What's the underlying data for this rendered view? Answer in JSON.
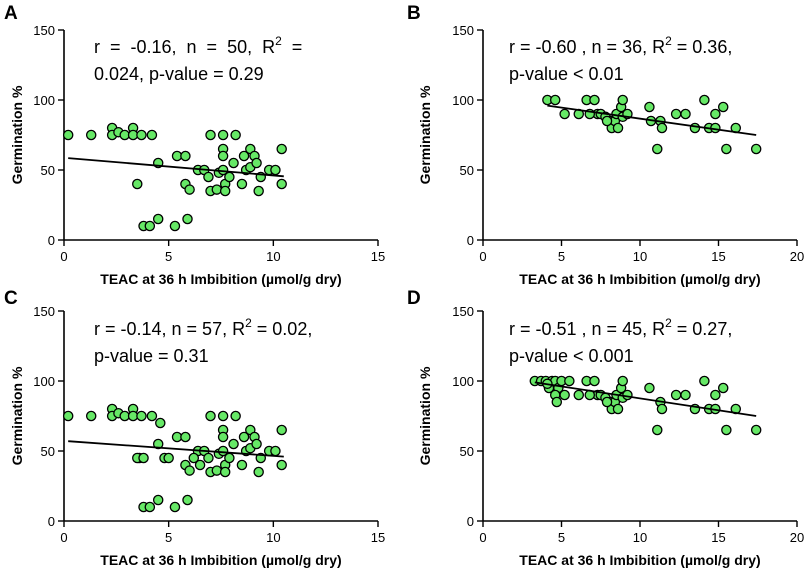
{
  "colors": {
    "point_fill": "#66e866",
    "point_stroke": "#000000",
    "axis": "#000000",
    "line": "#000000"
  },
  "chart_data": [
    {
      "id": "A",
      "type": "scatter",
      "xlabel": "TEAC at 36 h Imbibition (µmol/g dry)",
      "ylabel": "Germination %",
      "xlim": [
        0,
        15
      ],
      "ylim": [
        0,
        150
      ],
      "xticks": [
        0,
        5,
        10,
        15
      ],
      "yticks": [
        0,
        50,
        100,
        150
      ],
      "stats_line1": "r  =  -0.16,  n  =  50,  R",
      "stats_sup": "2",
      "stats_line1_end": "  =",
      "stats_line2": "0.024, p-value = 0.29",
      "regression": {
        "x": [
          0.2,
          10.5
        ],
        "y": [
          58.5,
          45.5
        ]
      },
      "points": [
        [
          0.2,
          75
        ],
        [
          1.3,
          75
        ],
        [
          2.3,
          80
        ],
        [
          2.3,
          75
        ],
        [
          2.6,
          77
        ],
        [
          2.9,
          75
        ],
        [
          3.3,
          80
        ],
        [
          3.3,
          75
        ],
        [
          3.7,
          75
        ],
        [
          3.5,
          40
        ],
        [
          3.8,
          10
        ],
        [
          4.1,
          10
        ],
        [
          4.2,
          75
        ],
        [
          4.5,
          15
        ],
        [
          4.5,
          55
        ],
        [
          5.3,
          10
        ],
        [
          5.4,
          60
        ],
        [
          5.8,
          60
        ],
        [
          5.9,
          15
        ],
        [
          5.8,
          40
        ],
        [
          6.0,
          36
        ],
        [
          6.4,
          50
        ],
        [
          6.7,
          50
        ],
        [
          6.9,
          45
        ],
        [
          7.0,
          35
        ],
        [
          7.3,
          36
        ],
        [
          7.4,
          48
        ],
        [
          7.0,
          75
        ],
        [
          7.6,
          75
        ],
        [
          7.6,
          65
        ],
        [
          7.6,
          60
        ],
        [
          7.6,
          50
        ],
        [
          7.7,
          40
        ],
        [
          7.7,
          35
        ],
        [
          7.9,
          45
        ],
        [
          8.1,
          55
        ],
        [
          8.2,
          75
        ],
        [
          8.5,
          40
        ],
        [
          8.6,
          60
        ],
        [
          8.7,
          50
        ],
        [
          8.9,
          52
        ],
        [
          8.9,
          65
        ],
        [
          9.1,
          60
        ],
        [
          9.2,
          55
        ],
        [
          9.3,
          35
        ],
        [
          9.4,
          45
        ],
        [
          9.8,
          50
        ],
        [
          10.1,
          50
        ],
        [
          10.4,
          65
        ],
        [
          10.4,
          40
        ]
      ]
    },
    {
      "id": "B",
      "type": "scatter",
      "xlabel": "TEAC at 36 h Imbibition (µmol/g dry)",
      "ylabel": "Germination %",
      "xlim": [
        0,
        20
      ],
      "ylim": [
        0,
        150
      ],
      "xticks": [
        0,
        5,
        10,
        15,
        20
      ],
      "yticks": [
        0,
        50,
        100,
        150
      ],
      "stats_line1": "r = -0.60 , n = 36, R",
      "stats_sup": "2",
      "stats_line1_end": " = 0.36,",
      "stats_line2": "p-value < 0.01",
      "regression": {
        "x": [
          4.1,
          17.4
        ],
        "y": [
          96,
          75
        ]
      },
      "points": [
        [
          4.1,
          100
        ],
        [
          4.6,
          100
        ],
        [
          5.2,
          90
        ],
        [
          6.1,
          90
        ],
        [
          6.6,
          100
        ],
        [
          7.1,
          100
        ],
        [
          7.3,
          90
        ],
        [
          7.5,
          90
        ],
        [
          7.8,
          88
        ],
        [
          8.1,
          85
        ],
        [
          8.2,
          80
        ],
        [
          8.4,
          85
        ],
        [
          8.5,
          90
        ],
        [
          8.6,
          80
        ],
        [
          8.8,
          95
        ],
        [
          8.9,
          100
        ],
        [
          8.9,
          88
        ],
        [
          10.6,
          95
        ],
        [
          11.1,
          65
        ],
        [
          11.3,
          85
        ],
        [
          11.4,
          80
        ],
        [
          12.3,
          90
        ],
        [
          12.9,
          90
        ],
        [
          13.5,
          80
        ],
        [
          14.1,
          100
        ],
        [
          14.4,
          80
        ],
        [
          14.8,
          80
        ],
        [
          14.8,
          90
        ],
        [
          15.3,
          95
        ],
        [
          15.5,
          65
        ],
        [
          16.1,
          80
        ],
        [
          17.4,
          65
        ],
        [
          10.7,
          85
        ],
        [
          7.9,
          85
        ],
        [
          6.8,
          90
        ],
        [
          9.2,
          90
        ]
      ]
    },
    {
      "id": "C",
      "type": "scatter",
      "xlabel": "TEAC at 36 h Imbibition (µmol/g dry)",
      "ylabel": "Germination %",
      "xlim": [
        0,
        15
      ],
      "ylim": [
        0,
        150
      ],
      "xticks": [
        0,
        5,
        10,
        15
      ],
      "yticks": [
        0,
        50,
        100,
        150
      ],
      "stats_line1": "r = -0.14, n = 57, R",
      "stats_sup": "2",
      "stats_line1_end": " = 0.02,",
      "stats_line2": "p-value = 0.31",
      "regression": {
        "x": [
          0.2,
          10.5
        ],
        "y": [
          57,
          46
        ]
      },
      "points": [
        [
          0.2,
          75
        ],
        [
          1.3,
          75
        ],
        [
          2.3,
          80
        ],
        [
          2.3,
          75
        ],
        [
          2.6,
          77
        ],
        [
          2.9,
          75
        ],
        [
          3.3,
          80
        ],
        [
          3.3,
          75
        ],
        [
          3.7,
          75
        ],
        [
          3.6,
          45
        ],
        [
          3.8,
          10
        ],
        [
          4.1,
          10
        ],
        [
          4.2,
          75
        ],
        [
          4.5,
          15
        ],
        [
          4.5,
          55
        ],
        [
          5.3,
          10
        ],
        [
          5.4,
          60
        ],
        [
          5.8,
          60
        ],
        [
          5.9,
          15
        ],
        [
          5.8,
          40
        ],
        [
          6.0,
          36
        ],
        [
          6.4,
          50
        ],
        [
          6.7,
          50
        ],
        [
          6.9,
          45
        ],
        [
          7.0,
          35
        ],
        [
          7.3,
          36
        ],
        [
          7.4,
          48
        ],
        [
          7.0,
          75
        ],
        [
          7.6,
          75
        ],
        [
          7.6,
          65
        ],
        [
          7.6,
          60
        ],
        [
          7.6,
          50
        ],
        [
          7.7,
          40
        ],
        [
          7.7,
          35
        ],
        [
          7.9,
          45
        ],
        [
          8.1,
          55
        ],
        [
          8.2,
          75
        ],
        [
          8.5,
          40
        ],
        [
          8.6,
          60
        ],
        [
          8.7,
          50
        ],
        [
          8.9,
          52
        ],
        [
          8.9,
          65
        ],
        [
          9.1,
          60
        ],
        [
          9.2,
          55
        ],
        [
          9.3,
          35
        ],
        [
          9.4,
          45
        ],
        [
          9.8,
          50
        ],
        [
          10.1,
          50
        ],
        [
          10.4,
          65
        ],
        [
          10.4,
          40
        ],
        [
          3.5,
          45
        ],
        [
          4.8,
          45
        ],
        [
          5.0,
          45
        ],
        [
          6.2,
          45
        ],
        [
          6.5,
          40
        ],
        [
          4.6,
          70
        ],
        [
          3.8,
          45
        ]
      ]
    },
    {
      "id": "D",
      "type": "scatter",
      "xlabel": "TEAC at 36 h Imbibition (µmol/g dry)",
      "ylabel": "Germination %",
      "xlim": [
        0,
        20
      ],
      "ylim": [
        0,
        150
      ],
      "xticks": [
        0,
        5,
        10,
        15,
        20
      ],
      "yticks": [
        0,
        50,
        100,
        150
      ],
      "stats_line1": "r = -0.51 , n = 45, R",
      "stats_sup": "2",
      "stats_line1_end": " = 0.27,",
      "stats_line2": "p-value < 0.001",
      "regression": {
        "x": [
          3.3,
          17.4
        ],
        "y": [
          99,
          75
        ]
      },
      "points": [
        [
          3.3,
          100
        ],
        [
          3.7,
          100
        ],
        [
          4.0,
          100
        ],
        [
          4.2,
          95
        ],
        [
          4.4,
          100
        ],
        [
          4.6,
          100
        ],
        [
          4.8,
          95
        ],
        [
          5.0,
          100
        ],
        [
          5.5,
          100
        ],
        [
          4.1,
          98
        ],
        [
          4.6,
          90
        ],
        [
          4.7,
          85
        ],
        [
          5.2,
          90
        ],
        [
          6.1,
          90
        ],
        [
          6.6,
          100
        ],
        [
          7.1,
          100
        ],
        [
          7.3,
          90
        ],
        [
          7.5,
          90
        ],
        [
          7.8,
          88
        ],
        [
          8.1,
          85
        ],
        [
          8.2,
          80
        ],
        [
          8.4,
          85
        ],
        [
          8.5,
          90
        ],
        [
          8.6,
          80
        ],
        [
          8.8,
          95
        ],
        [
          8.9,
          100
        ],
        [
          8.9,
          88
        ],
        [
          10.6,
          95
        ],
        [
          11.1,
          65
        ],
        [
          11.3,
          85
        ],
        [
          11.4,
          80
        ],
        [
          12.3,
          90
        ],
        [
          12.9,
          90
        ],
        [
          13.5,
          80
        ],
        [
          14.1,
          100
        ],
        [
          14.4,
          80
        ],
        [
          14.8,
          80
        ],
        [
          14.8,
          90
        ],
        [
          15.3,
          95
        ],
        [
          15.5,
          65
        ],
        [
          16.1,
          80
        ],
        [
          17.4,
          65
        ],
        [
          7.9,
          85
        ],
        [
          6.8,
          90
        ],
        [
          9.2,
          90
        ]
      ]
    }
  ]
}
